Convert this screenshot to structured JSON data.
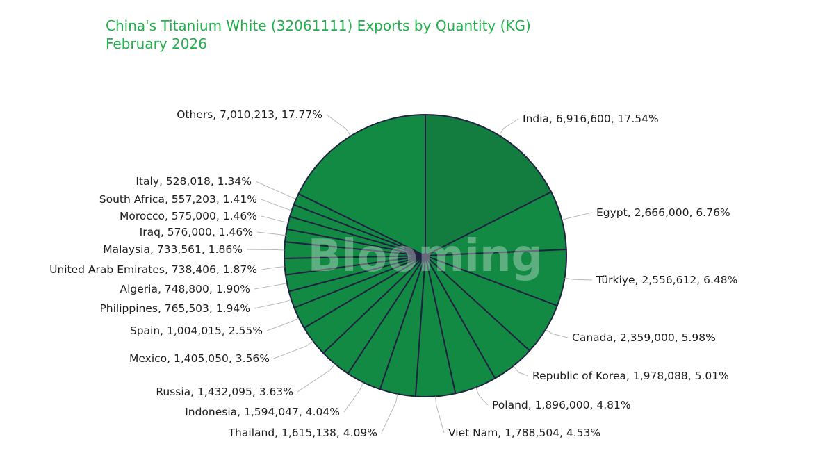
{
  "chart_data": {
    "type": "pie",
    "title": "China's Titanium White (32061111) Exports by Quantity (KG)",
    "subtitle": "February 2026",
    "watermark": "Blooming",
    "colors": {
      "title": "#21b04b",
      "slice_dark": "#137d40",
      "slice": "#138a43",
      "border": "#1f2340"
    },
    "slices": [
      {
        "label": "India",
        "value": 6916600,
        "percent": "17.54%",
        "display": "India, 6,916,600, 17.54%"
      },
      {
        "label": "Egypt",
        "value": 2666000,
        "percent": "6.76%",
        "display": "Egypt, 2,666,000, 6.76%"
      },
      {
        "label": "Türkiye",
        "value": 2556612,
        "percent": "6.48%",
        "display": "Türkiye, 2,556,612, 6.48%"
      },
      {
        "label": "Canada",
        "value": 2359000,
        "percent": "5.98%",
        "display": "Canada, 2,359,000, 5.98%"
      },
      {
        "label": "Republic of Korea",
        "value": 1978088,
        "percent": "5.01%",
        "display": "Republic of Korea, 1,978,088, 5.01%"
      },
      {
        "label": "Poland",
        "value": 1896000,
        "percent": "4.81%",
        "display": "Poland, 1,896,000, 4.81%"
      },
      {
        "label": "Viet Nam",
        "value": 1788504,
        "percent": "4.53%",
        "display": "Viet Nam, 1,788,504, 4.53%"
      },
      {
        "label": "Thailand",
        "value": 1615138,
        "percent": "4.09%",
        "display": "Thailand, 1,615,138, 4.09%"
      },
      {
        "label": "Indonesia",
        "value": 1594047,
        "percent": "4.04%",
        "display": "Indonesia, 1,594,047, 4.04%"
      },
      {
        "label": "Russia",
        "value": 1432095,
        "percent": "3.63%",
        "display": "Russia, 1,432,095, 3.63%"
      },
      {
        "label": "Mexico",
        "value": 1405050,
        "percent": "3.56%",
        "display": "Mexico, 1,405,050, 3.56%"
      },
      {
        "label": "Spain",
        "value": 1004015,
        "percent": "2.55%",
        "display": "Spain, 1,004,015, 2.55%"
      },
      {
        "label": "Philippines",
        "value": 765503,
        "percent": "1.94%",
        "display": "Philippines, 765,503, 1.94%"
      },
      {
        "label": "Algeria",
        "value": 748800,
        "percent": "1.90%",
        "display": "Algeria, 748,800, 1.90%"
      },
      {
        "label": "United Arab Emirates",
        "value": 738406,
        "percent": "1.87%",
        "display": "United Arab Emirates, 738,406, 1.87%"
      },
      {
        "label": "Malaysia",
        "value": 733561,
        "percent": "1.86%",
        "display": "Malaysia, 733,561, 1.86%"
      },
      {
        "label": "Iraq",
        "value": 576000,
        "percent": "1.46%",
        "display": "Iraq, 576,000, 1.46%"
      },
      {
        "label": "Morocco",
        "value": 575000,
        "percent": "1.46%",
        "display": "Morocco, 575,000, 1.46%"
      },
      {
        "label": "South Africa",
        "value": 557203,
        "percent": "1.41%",
        "display": "South Africa, 557,203, 1.41%"
      },
      {
        "label": "Italy",
        "value": 528018,
        "percent": "1.34%",
        "display": "Italy, 528,018, 1.34%"
      },
      {
        "label": "Others",
        "value": 7010213,
        "percent": "17.77%",
        "display": "Others, 7,010,213, 17.77%"
      }
    ]
  }
}
